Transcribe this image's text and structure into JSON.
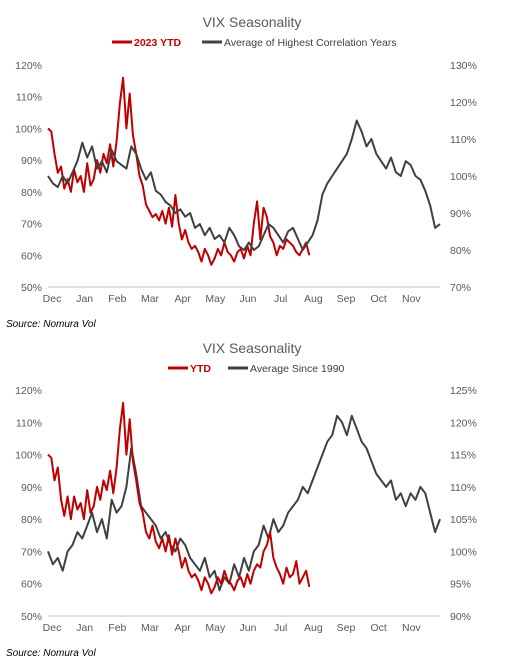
{
  "colors": {
    "ytd": "#c00000",
    "avg": "#404040",
    "axis": "#bfbfbf",
    "text": "#595959"
  },
  "chart_data": [
    {
      "type": "line",
      "title": "VIX Seasonality",
      "legend_position": "top",
      "x_ticks": [
        "Dec",
        "Jan",
        "Feb",
        "Mar",
        "Apr",
        "May",
        "Jun",
        "Jul",
        "Aug",
        "Sep",
        "Oct",
        "Nov"
      ],
      "y_left": {
        "lim": [
          50,
          120
        ],
        "ticks": [
          "50%",
          "60%",
          "70%",
          "80%",
          "90%",
          "100%",
          "110%",
          "120%"
        ],
        "values": [
          50,
          60,
          70,
          80,
          90,
          100,
          110,
          120
        ]
      },
      "y_right": {
        "lim": [
          70,
          130
        ],
        "ticks": [
          "70%",
          "80%",
          "90%",
          "100%",
          "110%",
          "120%",
          "130%"
        ],
        "values": [
          70,
          80,
          90,
          100,
          110,
          120,
          130
        ]
      },
      "grid": false,
      "series": [
        {
          "name": "2023 YTD",
          "axis": "left",
          "color": "#c00000",
          "x": [
            0,
            0.1,
            0.2,
            0.3,
            0.4,
            0.5,
            0.6,
            0.7,
            0.8,
            0.9,
            1.0,
            1.1,
            1.2,
            1.3,
            1.4,
            1.5,
            1.6,
            1.7,
            1.8,
            1.9,
            2.0,
            2.1,
            2.2,
            2.3,
            2.4,
            2.5,
            2.6,
            2.7,
            2.8,
            2.9,
            3.0,
            3.1,
            3.2,
            3.3,
            3.4,
            3.5,
            3.6,
            3.7,
            3.8,
            3.9,
            4.0,
            4.1,
            4.2,
            4.3,
            4.4,
            4.5,
            4.6,
            4.7,
            4.8,
            4.9,
            5.0,
            5.1,
            5.2,
            5.3,
            5.4,
            5.5,
            5.6,
            5.7,
            5.8,
            5.9,
            6.0,
            6.1,
            6.2,
            6.3,
            6.4,
            6.5,
            6.6,
            6.7,
            6.8,
            6.9,
            7.0,
            7.1,
            7.2,
            7.3,
            7.4,
            7.5,
            7.6,
            7.7,
            7.8,
            7.9,
            8.0
          ],
          "y": [
            100,
            99,
            92,
            86,
            88,
            81,
            84,
            80,
            87,
            83,
            85,
            80,
            89,
            82,
            84,
            90,
            86,
            92,
            89,
            95,
            88,
            96,
            108,
            116,
            100,
            111,
            98,
            92,
            85,
            82,
            76,
            74,
            72,
            73,
            71,
            74,
            70,
            75,
            69,
            79,
            70,
            65,
            68,
            64,
            62,
            63,
            61,
            58,
            62,
            60,
            57,
            59,
            62,
            60,
            64,
            61,
            60,
            58,
            61,
            62,
            59,
            63,
            60,
            70,
            77,
            65,
            75,
            72,
            66,
            64,
            60,
            63,
            62,
            65,
            64,
            63,
            61,
            60,
            62,
            64,
            60
          ]
        },
        {
          "name": "Average of Highest Correlation Years",
          "axis": "right",
          "color": "#404040",
          "x": [
            0,
            0.15,
            0.3,
            0.45,
            0.6,
            0.75,
            0.9,
            1.05,
            1.2,
            1.35,
            1.5,
            1.65,
            1.8,
            1.95,
            2.1,
            2.25,
            2.4,
            2.55,
            2.7,
            2.85,
            3.0,
            3.15,
            3.3,
            3.45,
            3.6,
            3.75,
            3.9,
            4.05,
            4.2,
            4.35,
            4.5,
            4.65,
            4.8,
            4.95,
            5.1,
            5.25,
            5.4,
            5.55,
            5.7,
            5.85,
            6.0,
            6.15,
            6.3,
            6.45,
            6.6,
            6.75,
            6.9,
            7.05,
            7.2,
            7.35,
            7.5,
            7.65,
            7.8,
            7.95,
            8.1,
            8.25,
            8.4,
            8.55,
            8.7,
            8.85,
            9.0,
            9.15,
            9.3,
            9.45,
            9.6,
            9.75,
            9.9,
            10.05,
            10.2,
            10.35,
            10.5,
            10.65,
            10.8,
            10.95,
            11.1,
            11.25,
            11.4,
            11.55,
            11.7,
            11.85,
            12.0
          ],
          "y": [
            100,
            98,
            97,
            100,
            98,
            101,
            104,
            109,
            105,
            108,
            102,
            104,
            101,
            107,
            104,
            103,
            102,
            108,
            106,
            102,
            99,
            101,
            96,
            95,
            93,
            92,
            90,
            91,
            89,
            90,
            86,
            87,
            84,
            86,
            83,
            84,
            82,
            86,
            84,
            81,
            80,
            82,
            80,
            81,
            84,
            87,
            86,
            84,
            82,
            85,
            86,
            83,
            80,
            82,
            84,
            88,
            95,
            98,
            100,
            102,
            104,
            106,
            110,
            115,
            112,
            108,
            110,
            106,
            104,
            102,
            105,
            101,
            100,
            104,
            103,
            100,
            99,
            96,
            92,
            86,
            87
          ]
        }
      ]
    },
    {
      "type": "line",
      "title": "VIX Seasonality",
      "legend_position": "top",
      "x_ticks": [
        "Dec",
        "Jan",
        "Feb",
        "Mar",
        "Apr",
        "May",
        "Jun",
        "Jul",
        "Aug",
        "Sep",
        "Oct",
        "Nov"
      ],
      "y_left": {
        "lim": [
          50,
          120
        ],
        "ticks": [
          "50%",
          "60%",
          "70%",
          "80%",
          "90%",
          "100%",
          "110%",
          "120%"
        ],
        "values": [
          50,
          60,
          70,
          80,
          90,
          100,
          110,
          120
        ]
      },
      "y_right": {
        "lim": [
          90,
          125
        ],
        "ticks": [
          "90%",
          "95%",
          "100%",
          "105%",
          "110%",
          "115%",
          "120%",
          "125%"
        ],
        "values": [
          90,
          95,
          100,
          105,
          110,
          115,
          120,
          125
        ]
      },
      "grid": false,
      "series": [
        {
          "name": "YTD",
          "axis": "left",
          "color": "#c00000",
          "x": [
            0,
            0.1,
            0.2,
            0.3,
            0.4,
            0.5,
            0.6,
            0.7,
            0.8,
            0.9,
            1.0,
            1.1,
            1.2,
            1.3,
            1.4,
            1.5,
            1.6,
            1.7,
            1.8,
            1.9,
            2.0,
            2.1,
            2.2,
            2.3,
            2.4,
            2.5,
            2.6,
            2.7,
            2.8,
            2.9,
            3.0,
            3.1,
            3.2,
            3.3,
            3.4,
            3.5,
            3.6,
            3.7,
            3.8,
            3.9,
            4.0,
            4.1,
            4.2,
            4.3,
            4.4,
            4.5,
            4.6,
            4.7,
            4.8,
            4.9,
            5.0,
            5.1,
            5.2,
            5.3,
            5.4,
            5.5,
            5.6,
            5.7,
            5.8,
            5.9,
            6.0,
            6.1,
            6.2,
            6.3,
            6.4,
            6.5,
            6.6,
            6.7,
            6.8,
            6.9,
            7.0,
            7.1,
            7.2,
            7.3,
            7.4,
            7.5,
            7.6,
            7.7,
            7.8,
            7.9,
            8.0
          ],
          "y": [
            100,
            99,
            92,
            96,
            86,
            81,
            87,
            80,
            87,
            83,
            85,
            80,
            89,
            82,
            84,
            90,
            86,
            92,
            89,
            95,
            88,
            96,
            108,
            116,
            100,
            111,
            98,
            92,
            85,
            82,
            76,
            74,
            78,
            73,
            71,
            74,
            70,
            75,
            69,
            74,
            70,
            65,
            68,
            64,
            62,
            63,
            61,
            58,
            62,
            60,
            57,
            59,
            62,
            60,
            64,
            61,
            60,
            58,
            61,
            62,
            59,
            63,
            60,
            64,
            66,
            65,
            70,
            72,
            76,
            68,
            65,
            63,
            60,
            65,
            62,
            63,
            67,
            60,
            62,
            64,
            59
          ]
        },
        {
          "name": "Average Since 1990",
          "axis": "right",
          "color": "#404040",
          "x": [
            0,
            0.15,
            0.3,
            0.45,
            0.6,
            0.75,
            0.9,
            1.05,
            1.2,
            1.35,
            1.5,
            1.65,
            1.8,
            1.95,
            2.1,
            2.25,
            2.4,
            2.55,
            2.7,
            2.85,
            3.0,
            3.15,
            3.3,
            3.45,
            3.6,
            3.75,
            3.9,
            4.05,
            4.2,
            4.35,
            4.5,
            4.65,
            4.8,
            4.95,
            5.1,
            5.25,
            5.4,
            5.55,
            5.7,
            5.85,
            6.0,
            6.15,
            6.3,
            6.45,
            6.6,
            6.75,
            6.9,
            7.05,
            7.2,
            7.35,
            7.5,
            7.65,
            7.8,
            7.95,
            8.1,
            8.25,
            8.4,
            8.55,
            8.7,
            8.85,
            9.0,
            9.15,
            9.3,
            9.45,
            9.6,
            9.75,
            9.9,
            10.05,
            10.2,
            10.35,
            10.5,
            10.65,
            10.8,
            10.95,
            11.1,
            11.25,
            11.4,
            11.55,
            11.7,
            11.85,
            12.0
          ],
          "y": [
            100,
            98,
            99,
            97,
            100,
            101,
            103,
            102,
            104,
            106,
            103,
            105,
            102,
            108,
            106,
            107,
            110,
            116,
            112,
            107,
            106,
            105,
            104,
            102,
            103,
            101,
            100,
            102,
            101,
            99,
            98,
            97,
            99,
            96,
            97,
            94,
            96,
            95,
            98,
            96,
            99,
            97,
            100,
            101,
            104,
            102,
            105,
            103,
            104,
            106,
            107,
            108,
            110,
            109,
            111,
            113,
            115,
            117,
            118,
            121,
            120,
            118,
            121,
            119,
            117,
            116,
            114,
            112,
            111,
            110,
            111,
            108,
            109,
            107,
            109,
            108,
            110,
            109,
            106,
            103,
            105
          ]
        }
      ]
    }
  ],
  "sources": [
    "Source: Nomura Vol",
    "Source: Nomura Vol"
  ]
}
